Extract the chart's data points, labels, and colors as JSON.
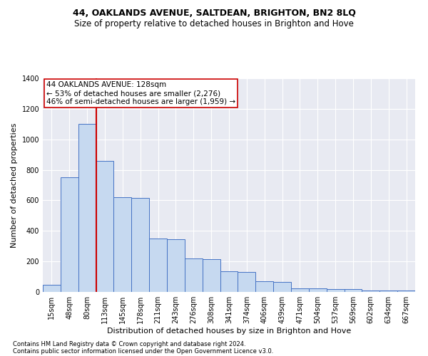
{
  "title": "44, OAKLANDS AVENUE, SALTDEAN, BRIGHTON, BN2 8LQ",
  "subtitle": "Size of property relative to detached houses in Brighton and Hove",
  "xlabel": "Distribution of detached houses by size in Brighton and Hove",
  "ylabel": "Number of detached properties",
  "footer_line1": "Contains HM Land Registry data © Crown copyright and database right 2024.",
  "footer_line2": "Contains public sector information licensed under the Open Government Licence v3.0.",
  "categories": [
    "15sqm",
    "48sqm",
    "80sqm",
    "113sqm",
    "145sqm",
    "178sqm",
    "211sqm",
    "243sqm",
    "276sqm",
    "308sqm",
    "341sqm",
    "374sqm",
    "406sqm",
    "439sqm",
    "471sqm",
    "504sqm",
    "537sqm",
    "569sqm",
    "602sqm",
    "634sqm",
    "667sqm"
  ],
  "values": [
    48,
    750,
    1100,
    860,
    620,
    615,
    350,
    345,
    220,
    215,
    135,
    130,
    68,
    65,
    25,
    22,
    20,
    18,
    10,
    8,
    8
  ],
  "bar_color": "#c6d9f0",
  "bar_edge_color": "#4472c4",
  "property_label": "44 OAKLANDS AVENUE: 128sqm",
  "annotation_line1": "← 53% of detached houses are smaller (2,276)",
  "annotation_line2": "46% of semi-detached houses are larger (1,959) →",
  "vline_x_index": 3,
  "vline_color": "#cc0000",
  "box_color": "#cc0000",
  "ylim": [
    0,
    1400
  ],
  "yticks": [
    0,
    200,
    400,
    600,
    800,
    1000,
    1200,
    1400
  ],
  "plot_bg_color": "#e8eaf2",
  "title_fontsize": 9,
  "subtitle_fontsize": 8.5,
  "xlabel_fontsize": 8,
  "ylabel_fontsize": 8,
  "tick_fontsize": 7,
  "annotation_fontsize": 7.5,
  "footer_fontsize": 6
}
